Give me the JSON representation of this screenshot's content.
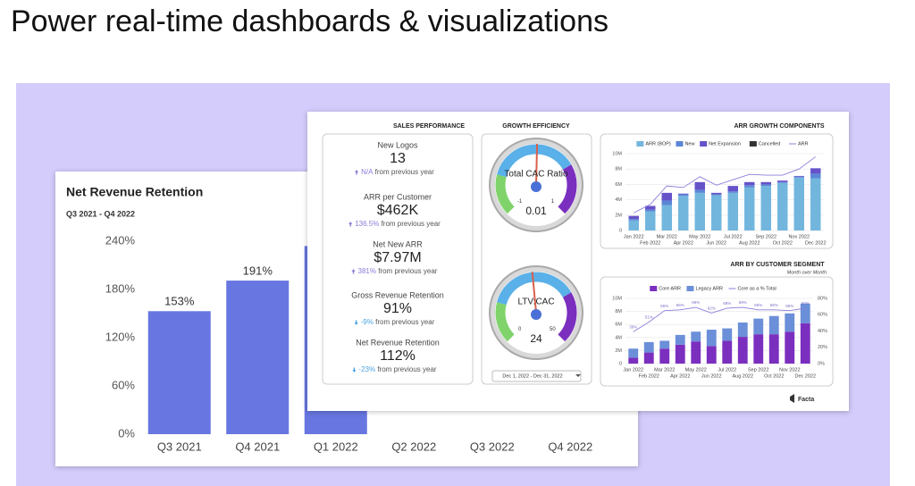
{
  "headline": "Power real-time dashboards & visualizations",
  "chart_data": [
    {
      "type": "bar",
      "title": "Net Revenue Retention",
      "subtitle": "Q3 2021 - Q4 2022",
      "categories": [
        "Q3 2021",
        "Q4 2021",
        "Q1 2022",
        "Q2 2022",
        "Q3 2022",
        "Q4 2022"
      ],
      "values": [
        153,
        191,
        234,
        null,
        null,
        null
      ],
      "value_labels": [
        "153%",
        "191%",
        null,
        null,
        null,
        null
      ],
      "color": "#6776e0",
      "ylim": [
        0,
        240
      ],
      "yticks": [
        {
          "value": 0,
          "label": "0%"
        },
        {
          "value": 60,
          "label": "60%"
        },
        {
          "value": 120,
          "label": "120%"
        },
        {
          "value": 180,
          "label": "180%"
        },
        {
          "value": 240,
          "label": "240%"
        }
      ],
      "grid": false
    },
    {
      "type": "bar",
      "title": "ARR GROWTH COMPONENTS",
      "stacked": true,
      "legend": "top",
      "categories": [
        "Jan 2022",
        "Feb 2022",
        "Mar 2022",
        "Apr 2022",
        "May 2022",
        "Jun 2022",
        "Jul 2022",
        "Aug 2022",
        "Sep 2022",
        "Oct 2022",
        "Nov 2022",
        "Dec 2022"
      ],
      "series": [
        {
          "name": "ARR (BOP)",
          "color": "#72b6de",
          "values": [
            1.3,
            2.5,
            3.3,
            4.5,
            4.9,
            4.6,
            4.9,
            5.6,
            5.8,
            6.2,
            6.9,
            6.8
          ]
        },
        {
          "name": "New",
          "color": "#5b86d6",
          "values": [
            0.2,
            0.2,
            0.6,
            0.2,
            0.4,
            0.1,
            0.2,
            0.3,
            0.2,
            0.1,
            0.1,
            0.6
          ]
        },
        {
          "name": "Net Expansion",
          "color": "#6652c9",
          "values": [
            0.4,
            0.5,
            1.0,
            0.1,
            1.0,
            0.2,
            0.7,
            0.4,
            0.3,
            0.2,
            0.1,
            0.7
          ]
        },
        {
          "name": "Cancelled",
          "color": "#333333",
          "values": [
            0,
            0,
            0,
            0,
            0,
            0,
            0,
            0,
            0,
            0,
            0,
            0
          ]
        },
        {
          "name": "ARR",
          "color": "#8a7fd9",
          "type": "line",
          "values": [
            2.3,
            3.4,
            5.8,
            5.6,
            7.0,
            5.9,
            6.6,
            7.3,
            7.2,
            7.2,
            8.0,
            9.6
          ]
        }
      ],
      "ylim": [
        0,
        10
      ],
      "yticks": [
        0,
        {
          "value": 2,
          "label": "2M"
        },
        {
          "value": 4,
          "label": "4M"
        },
        {
          "value": 6,
          "label": "6M"
        },
        {
          "value": 8,
          "label": "8M"
        },
        {
          "value": 10,
          "label": "10M"
        }
      ],
      "grid": true
    },
    {
      "type": "bar",
      "title": "ARR BY CUSTOMER SEGMENT",
      "subtitle": "Month over Month",
      "stacked": true,
      "legend": "top",
      "categories": [
        "Jan 2022",
        "Feb 2022",
        "Mar 2022",
        "Apr 2022",
        "May 2022",
        "Jun 2022",
        "Jul 2022",
        "Aug 2022",
        "Sep 2022",
        "Oct 2022",
        "Nov 2022",
        "Dec 2022"
      ],
      "series": [
        {
          "name": "Core ARR",
          "color": "#7b2fbf",
          "values": [
            0.9,
            1.7,
            2.3,
            2.9,
            3.4,
            2.7,
            3.5,
            4.1,
            4.5,
            4.5,
            4.9,
            6.2
          ]
        },
        {
          "name": "Legacy ARR",
          "color": "#6b8fd8",
          "values": [
            1.4,
            1.6,
            1.2,
            1.5,
            1.5,
            2.5,
            1.9,
            2.2,
            2.4,
            2.8,
            2.8,
            3.0
          ]
        },
        {
          "name": "Core as a % Total",
          "color": "#8a7fd9",
          "type": "line",
          "axis": "y2",
          "values": [
            39,
            51,
            65,
            66,
            69,
            62,
            68,
            69,
            66,
            66,
            65,
            68
          ],
          "value_labels": [
            "39%",
            "51%",
            "65%",
            "66%",
            "69%",
            "62%",
            "68%",
            "69%",
            "66%",
            "66%",
            "65%",
            "68%"
          ]
        }
      ],
      "ylim": [
        0,
        10
      ],
      "yticks": [
        0,
        {
          "value": 2,
          "label": "2M"
        },
        {
          "value": 4,
          "label": "4M"
        },
        {
          "value": 6,
          "label": "6M"
        },
        {
          "value": 8,
          "label": "8M"
        },
        {
          "value": 10,
          "label": "10M"
        }
      ],
      "y2lim": [
        0,
        80
      ],
      "y2ticks": [
        {
          "value": 0,
          "label": "0%"
        },
        {
          "value": 20,
          "label": "20%"
        },
        {
          "value": 40,
          "label": "40%"
        },
        {
          "value": 60,
          "label": "60%"
        },
        {
          "value": 80,
          "label": "80%"
        }
      ],
      "grid": true
    }
  ],
  "sales_performance": {
    "title": "SALES PERFORMANCE",
    "metrics": [
      {
        "label": "New Logos",
        "value": 13,
        "change": "N/A",
        "note": "from previous year"
      },
      {
        "label": "ARR per Customer",
        "value": "$462K",
        "change": "136.5%",
        "note": "from previous year"
      },
      {
        "label": "Net New ARR",
        "value": "$7.97M",
        "change": "381%",
        "note": "from previous year"
      },
      {
        "label": "Gross Revenue Retention",
        "value": "91%",
        "change": "-9%",
        "note": "from previous year"
      },
      {
        "label": "Net Revenue Retention",
        "value": "112%",
        "change": "-23%",
        "note": "from previous year"
      }
    ]
  },
  "growth_efficiency": {
    "title": "GROWTH EFFICIENCY",
    "gauges": [
      {
        "label": "Total CAC Ratio",
        "value": 0.01,
        "min": -1,
        "max": 1
      },
      {
        "label": "LTV:CAC",
        "value": 24,
        "min": 0,
        "max": 50
      }
    ],
    "date_range": "Dec 1, 2022 - Dec 31, 2022"
  },
  "footer": {
    "logo": "Facta"
  }
}
